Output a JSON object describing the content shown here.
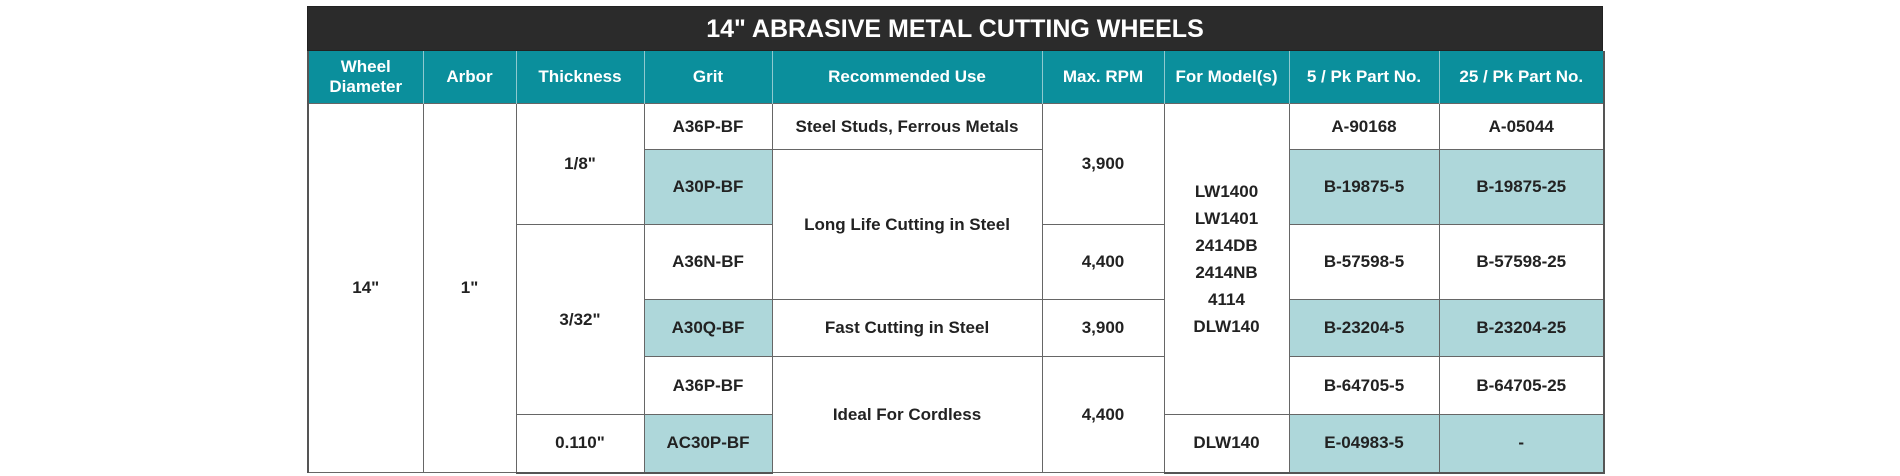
{
  "title": "14\" ABRASIVE METAL CUTTING WHEELS",
  "headers": {
    "diameter": [
      "Wheel",
      "Diameter"
    ],
    "arbor": "Arbor",
    "thickness": "Thickness",
    "grit": "Grit",
    "use": "Recommended Use",
    "rpm": "Max. RPM",
    "models": "For Model(s)",
    "pk5": "5 / Pk Part No.",
    "pk25": "25 / Pk Part No."
  },
  "diameter": "14\"",
  "arbor": "1\"",
  "thickness": [
    "1/8\"",
    "3/32\"",
    "0.110\""
  ],
  "grit": [
    "A36P-BF",
    "A30P-BF",
    "A36N-BF",
    "A30Q-BF",
    "A36P-BF",
    "AC30P-BF"
  ],
  "use": [
    "Steel Studs, Ferrous Metals",
    "Long Life Cutting in Steel",
    "Fast Cutting in Steel",
    "Ideal For Cordless"
  ],
  "rpm": [
    "3,900",
    "4,400",
    "3,900",
    "4,400"
  ],
  "models_group": [
    "LW1400",
    "LW1401",
    "2414DB",
    "2414NB",
    "4114",
    "DLW140"
  ],
  "models_last": "DLW140",
  "pk5": [
    "A-90168",
    "B-19875-5",
    "B-57598-5",
    "B-23204-5",
    "B-64705-5",
    "E-04983-5"
  ],
  "pk25": [
    "A-05044",
    "B-19875-25",
    "B-57598-25",
    "B-23204-25",
    "B-64705-25",
    "-"
  ],
  "colors": {
    "header": "#0b8f9c",
    "title_bar": "#2b2b2b",
    "highlight": "#aed7da"
  }
}
